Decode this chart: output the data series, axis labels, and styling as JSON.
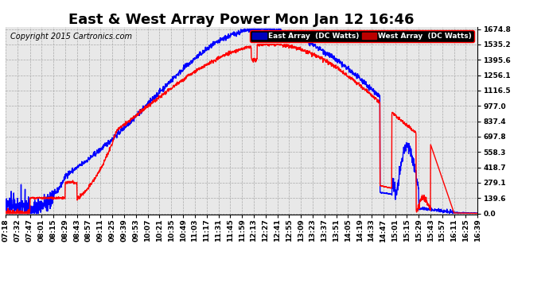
{
  "title": "East & West Array Power Mon Jan 12 16:46",
  "copyright": "Copyright 2015 Cartronics.com",
  "legend_east": "East Array  (DC Watts)",
  "legend_west": "West Array  (DC Watts)",
  "east_color": "#0000FF",
  "west_color": "#FF0000",
  "legend_east_bg": "#0000BB",
  "legend_west_bg": "#BB0000",
  "background_color": "#FFFFFF",
  "plot_bg_color": "#E8E8E8",
  "grid_color": "#AAAAAA",
  "yticks": [
    0.0,
    139.6,
    279.1,
    418.7,
    558.3,
    697.8,
    837.4,
    977.0,
    1116.5,
    1256.1,
    1395.6,
    1535.2,
    1674.8
  ],
  "ymax": 1674.8,
  "ymin": 0.0,
  "xtick_labels": [
    "07:18",
    "07:32",
    "07:47",
    "08:01",
    "08:15",
    "08:29",
    "08:43",
    "08:57",
    "09:11",
    "09:25",
    "09:39",
    "09:53",
    "10:07",
    "10:21",
    "10:35",
    "10:49",
    "11:03",
    "11:17",
    "11:31",
    "11:45",
    "11:59",
    "12:13",
    "12:27",
    "12:41",
    "12:55",
    "13:09",
    "13:23",
    "13:37",
    "13:51",
    "14:05",
    "14:19",
    "14:33",
    "14:47",
    "15:01",
    "15:15",
    "15:29",
    "15:43",
    "15:57",
    "16:11",
    "16:25",
    "16:39"
  ],
  "title_fontsize": 13,
  "copyright_fontsize": 7,
  "tick_fontsize": 6.5,
  "line_width": 1.0
}
